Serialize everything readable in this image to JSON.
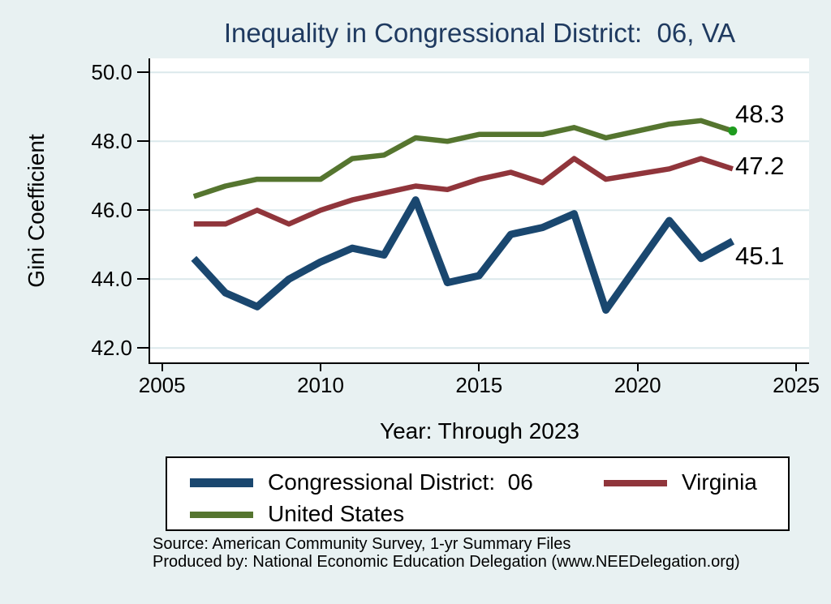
{
  "chart_data": {
    "type": "line",
    "title": "Inequality in Congressional District:  06, VA",
    "xlabel": "Year: Through 2023",
    "ylabel": "Gini Coefficient",
    "xlim": [
      2005,
      2025
    ],
    "ylim": [
      42.0,
      50.0
    ],
    "grid": true,
    "legend_position": "bottom",
    "xticks": {
      "values": [
        2005,
        2010,
        2015,
        2020,
        2025
      ],
      "labels": [
        "2005",
        "2010",
        "2015",
        "2020",
        "2025"
      ]
    },
    "yticks": {
      "values": [
        42,
        44,
        46,
        48,
        50
      ],
      "labels": [
        "42.0",
        "44.0",
        "46.0",
        "48.0",
        "50.0"
      ]
    },
    "x": [
      2006,
      2007,
      2008,
      2009,
      2010,
      2011,
      2012,
      2013,
      2014,
      2015,
      2016,
      2017,
      2018,
      2019,
      2021,
      2022,
      2023
    ],
    "series": [
      {
        "name": "Congressional District:  06",
        "color": "#1a476f",
        "end_label": "45.1",
        "values": [
          44.6,
          43.6,
          43.2,
          44.0,
          44.5,
          44.9,
          44.7,
          46.3,
          43.9,
          44.1,
          45.3,
          45.5,
          45.9,
          43.1,
          45.7,
          44.6,
          45.1
        ]
      },
      {
        "name": "Virginia",
        "color": "#90353b",
        "end_label": "47.2",
        "values": [
          45.6,
          45.6,
          46.0,
          45.6,
          46.0,
          46.3,
          46.5,
          46.7,
          46.6,
          46.9,
          47.1,
          46.8,
          47.5,
          46.9,
          47.2,
          47.5,
          47.2
        ]
      },
      {
        "name": "United States",
        "color": "#55752f",
        "end_label": "48.3",
        "end_marker": true,
        "marker_color": "#1e9b1e",
        "values": [
          46.4,
          46.7,
          46.9,
          46.9,
          46.9,
          47.5,
          47.6,
          48.1,
          48.0,
          48.2,
          48.2,
          48.2,
          48.4,
          48.1,
          48.5,
          48.6,
          48.3
        ]
      }
    ]
  },
  "source": {
    "line1": "Source: American Community Survey, 1-yr Summary Files",
    "line2": "Produced by: National Economic Education Delegation (www.NEEDelegation.org)"
  },
  "colors": {
    "background": "#e8f1f2",
    "plot_background": "#ffffff",
    "gridline": "#dbe8ec",
    "title": "#1f3a60",
    "axis": "#000000"
  }
}
